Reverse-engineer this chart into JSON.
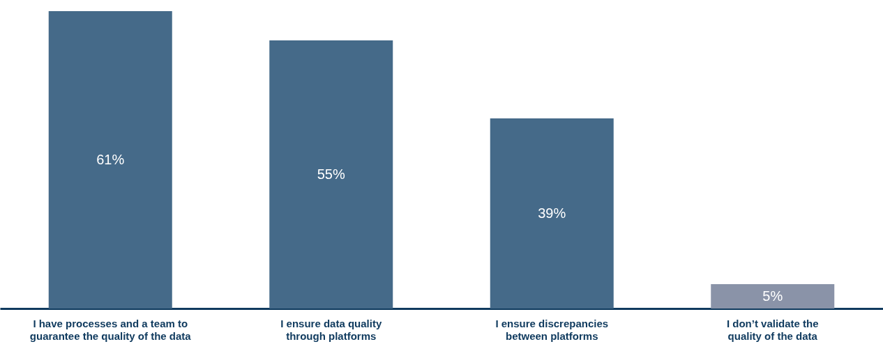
{
  "chart_data": {
    "type": "bar",
    "categories": [
      "I have processes and a team to guarantee the quality of the data",
      "I ensure data quality through platforms",
      "I ensure discrepancies between platforms",
      "I don’t validate the quality of the data"
    ],
    "values": [
      61,
      55,
      39,
      5
    ],
    "colors": [
      "#456a89",
      "#456a89",
      "#456a89",
      "#8a93a8"
    ],
    "value_labels": [
      "61%",
      "55%",
      "39%",
      "5%"
    ]
  }
}
